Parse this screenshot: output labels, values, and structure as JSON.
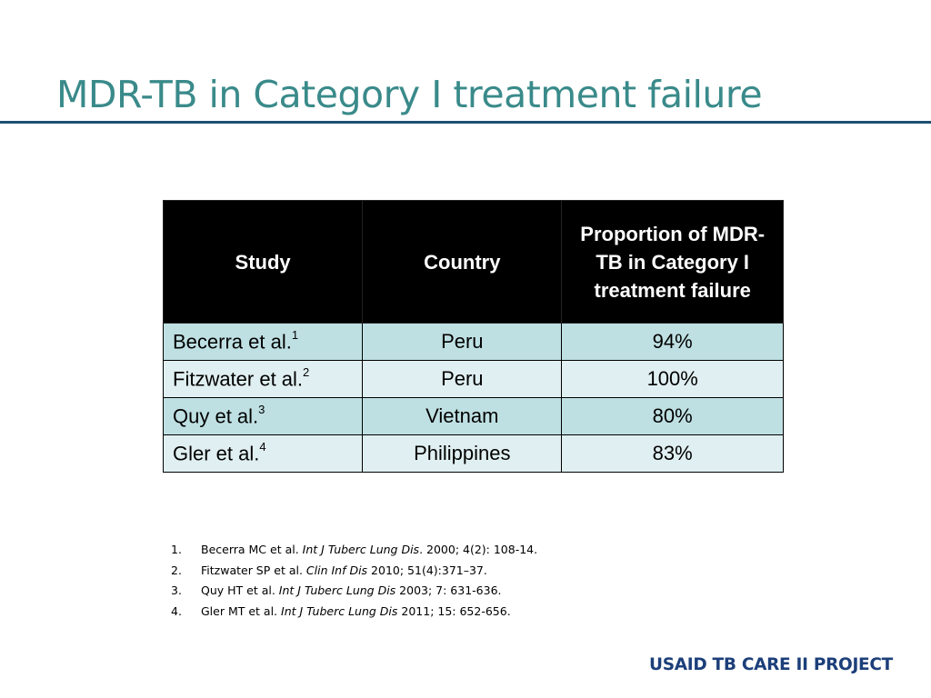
{
  "slide": {
    "title": "MDR-TB in Category I treatment failure"
  },
  "table": {
    "headers": [
      "Study",
      "Country",
      "Proportion of MDR-TB in Category I treatment failure"
    ],
    "rows": [
      {
        "study": "Becerra et al.",
        "sup": "1",
        "country": "Peru",
        "proportion": "94%"
      },
      {
        "study": "Fitzwater et al.",
        "sup": "2",
        "country": "Peru",
        "proportion": "100%"
      },
      {
        "study": "Quy et al.",
        "sup": "3",
        "country": "Vietnam",
        "proportion": "80%"
      },
      {
        "study": "Gler et al.",
        "sup": "4",
        "country": "Philippines",
        "proportion": "83%"
      }
    ]
  },
  "references": [
    {
      "num": "1.",
      "authors": "Becerra MC et al.",
      "journal": "Int J Tuberc Lung Dis",
      "details": ". 2000; 4(2): 108-14."
    },
    {
      "num": "2.",
      "authors": "Fitzwater SP et al.",
      "journal": "Clin Inf Dis",
      "details": " 2010; 51(4):371–37."
    },
    {
      "num": "3.",
      "authors": "Quy HT et al.",
      "journal": "Int J Tuberc Lung Dis",
      "details": " 2003; 7: 631-636."
    },
    {
      "num": "4.",
      "authors": "Gler MT et al.",
      "journal": "Int J Tuberc Lung Dis",
      "details": " 2011; 15: 652-656."
    }
  ],
  "footer": {
    "text": "USAID TB CARE II PROJECT"
  },
  "colors": {
    "title": "#3a8a8a",
    "rule": "#1f4f73",
    "header_bg": "#000000",
    "row_odd": "#bfe0e3",
    "row_even": "#e0eff1",
    "footer": "#1c3f7a"
  }
}
